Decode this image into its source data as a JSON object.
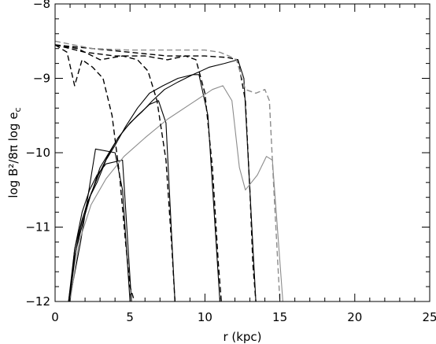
{
  "chart_data": {
    "type": "line",
    "title": "",
    "xlabel": "r (kpc)",
    "ylabel": "log B²/8π   log e",
    "ylabel_subscript": "c",
    "xlim": [
      0,
      25
    ],
    "ylim": [
      -12,
      -8
    ],
    "x_ticks": [
      0,
      5,
      10,
      15,
      20,
      25
    ],
    "y_ticks": [
      -12,
      -11,
      -10,
      -9,
      -8
    ],
    "x_tick_labels": [
      "0",
      "5",
      "10",
      "15",
      "20",
      "25"
    ],
    "y_tick_labels": [
      "−12",
      "−11",
      "−10",
      "−9",
      "−8"
    ],
    "grid": false,
    "legend": "none",
    "series": [
      {
        "group": "magnetic",
        "style": "solid",
        "color": "#000000",
        "x": [
          0.95,
          1.3,
          1.8,
          2.3,
          2.8,
          3.4,
          4.5,
          5.1
        ],
        "y": [
          -12.0,
          -11.3,
          -10.8,
          -10.5,
          -10.3,
          -10.15,
          -10.1,
          -12.0
        ]
      },
      {
        "group": "magnetic",
        "style": "solid",
        "color": "#000000",
        "x": [
          0.9,
          1.3,
          1.7,
          2.1,
          2.5,
          3.0,
          3.6,
          4.2,
          4.8,
          5.5,
          6.3,
          6.9,
          7.4,
          8.0
        ],
        "y": [
          -12.0,
          -11.4,
          -11.0,
          -10.7,
          -10.5,
          -10.2,
          -10.0,
          -9.8,
          -9.65,
          -9.5,
          -9.35,
          -9.3,
          -9.6,
          -12.0
        ]
      },
      {
        "group": "magnetic",
        "style": "solid",
        "color": "#000000",
        "x": [
          0.9,
          1.3,
          1.8,
          2.3,
          2.8,
          3.4,
          4.0,
          4.7,
          5.5,
          6.3,
          7.2,
          8.2,
          9.2,
          9.6,
          10.2,
          11.0
        ],
        "y": [
          -12.0,
          -11.3,
          -10.9,
          -10.6,
          -10.4,
          -10.1,
          -9.9,
          -9.65,
          -9.4,
          -9.2,
          -9.1,
          -9.0,
          -8.95,
          -8.95,
          -9.5,
          -12.0
        ]
      },
      {
        "group": "magnetic",
        "style": "solid",
        "color": "#000000",
        "x": [
          0.95,
          1.4,
          1.9,
          2.4,
          2.9,
          3.5,
          4.2,
          5.0,
          5.8,
          6.5,
          7.3,
          8.2,
          9.2,
          10.3,
          11.3,
          12.2,
          12.6,
          13.4
        ],
        "y": [
          -12.0,
          -11.3,
          -10.9,
          -10.55,
          -10.3,
          -10.05,
          -9.8,
          -9.6,
          -9.45,
          -9.3,
          -9.15,
          -9.05,
          -8.95,
          -8.85,
          -8.8,
          -8.75,
          -9.0,
          -12.0
        ]
      },
      {
        "group": "magnetic",
        "style": "solid",
        "color": "#000000",
        "x": [
          0.95,
          1.7,
          2.7,
          4.0,
          4.5,
          5.0
        ],
        "y": [
          -12.0,
          -11.2,
          -9.95,
          -10.0,
          -10.5,
          -12.0
        ]
      },
      {
        "group": "magnetic",
        "style": "solid",
        "color": "#8c8c8c",
        "x": [
          1.0,
          1.6,
          2.4,
          3.4,
          4.6,
          6.0,
          7.5,
          9.0,
          10.5,
          11.2,
          11.8,
          12.3,
          12.7,
          13.5,
          14.1,
          14.5,
          15.2
        ],
        "y": [
          -12.0,
          -11.2,
          -10.7,
          -10.35,
          -10.05,
          -9.8,
          -9.55,
          -9.35,
          -9.15,
          -9.1,
          -9.3,
          -10.2,
          -10.5,
          -10.3,
          -10.05,
          -10.1,
          -12.0
        ]
      },
      {
        "group": "cosmic-ray",
        "style": "dashed",
        "color": "#000000",
        "x": [
          0.0,
          0.8,
          1.3,
          1.8,
          2.5,
          3.2,
          3.8,
          4.3,
          4.7,
          5.0,
          5.3
        ],
        "y": [
          -8.55,
          -8.65,
          -9.1,
          -8.75,
          -8.85,
          -9.0,
          -9.5,
          -10.3,
          -11.2,
          -11.8,
          -12.0
        ]
      },
      {
        "group": "cosmic-ray",
        "style": "dashed",
        "color": "#000000",
        "x": [
          0.0,
          1.5,
          3.0,
          4.5,
          5.5,
          6.2,
          6.8,
          7.4,
          7.8,
          8.0
        ],
        "y": [
          -8.55,
          -8.6,
          -8.75,
          -8.7,
          -8.75,
          -8.9,
          -9.3,
          -10.1,
          -11.3,
          -12.0
        ]
      },
      {
        "group": "cosmic-ray",
        "style": "dashed",
        "color": "#000000",
        "x": [
          0.0,
          2.0,
          4.0,
          6.0,
          7.5,
          8.7,
          9.4,
          10.0,
          10.5,
          10.9,
          11.1
        ],
        "y": [
          -8.55,
          -8.65,
          -8.7,
          -8.7,
          -8.75,
          -8.7,
          -8.75,
          -9.2,
          -10.2,
          -11.5,
          -12.0
        ]
      },
      {
        "group": "cosmic-ray",
        "style": "dashed",
        "color": "#000000",
        "x": [
          0.0,
          2.5,
          5.0,
          7.5,
          10.0,
          11.5,
          12.2,
          12.7,
          13.0,
          13.2,
          13.4
        ],
        "y": [
          -8.55,
          -8.6,
          -8.65,
          -8.7,
          -8.7,
          -8.72,
          -8.75,
          -9.3,
          -10.5,
          -11.5,
          -12.0
        ]
      },
      {
        "group": "cosmic-ray",
        "style": "dashed",
        "color": "#8c8c8c",
        "x": [
          0.0,
          2.5,
          5.0,
          7.5,
          10.0,
          11.0,
          11.6,
          12.1,
          12.7,
          13.4,
          14.0,
          14.3,
          14.6,
          15.0
        ],
        "y": [
          -8.5,
          -8.6,
          -8.62,
          -8.62,
          -8.62,
          -8.65,
          -8.7,
          -8.75,
          -9.15,
          -9.2,
          -9.15,
          -9.3,
          -10.5,
          -12.0
        ]
      }
    ]
  }
}
